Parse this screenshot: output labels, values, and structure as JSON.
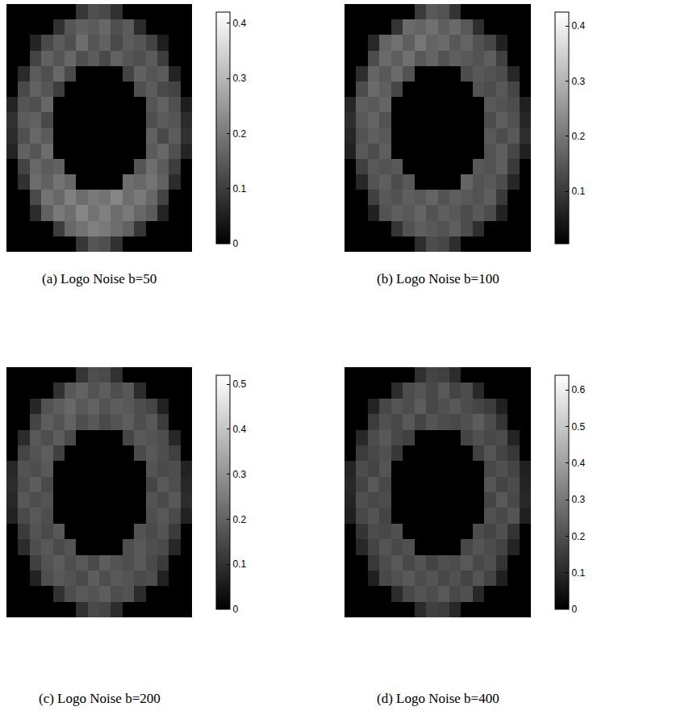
{
  "chart_data": [
    {
      "type": "heatmap",
      "title": "(a) Logo Noise b=50",
      "tick_labels": false,
      "zlim": [
        0,
        0.42
      ],
      "zticks": [
        0,
        0.1,
        0.2,
        0.3,
        0.4
      ],
      "z": [
        [
          0,
          0,
          0,
          0,
          0,
          0,
          0.09,
          0.13,
          0.12,
          0.08,
          0,
          0,
          0,
          0,
          0,
          0
        ],
        [
          0,
          0,
          0,
          0,
          0.08,
          0.14,
          0.16,
          0.15,
          0.17,
          0.13,
          0.15,
          0.07,
          0,
          0,
          0,
          0
        ],
        [
          0,
          0,
          0.06,
          0.12,
          0.15,
          0.13,
          0.18,
          0.14,
          0.16,
          0.12,
          0.15,
          0.14,
          0.11,
          0.05,
          0,
          0
        ],
        [
          0,
          0,
          0.11,
          0.16,
          0.14,
          0.17,
          0.13,
          0.15,
          0.12,
          0.16,
          0.14,
          0.13,
          0.15,
          0.1,
          0,
          0
        ],
        [
          0,
          0.07,
          0.15,
          0.13,
          0.17,
          0.12,
          0,
          0,
          0,
          0,
          0.11,
          0.16,
          0.14,
          0.15,
          0.06,
          0
        ],
        [
          0,
          0.12,
          0.16,
          0.14,
          0.1,
          0,
          0,
          0,
          0,
          0,
          0,
          0.13,
          0.15,
          0.12,
          0.11,
          0
        ],
        [
          0.06,
          0.14,
          0.13,
          0.17,
          0,
          0,
          0,
          0,
          0,
          0,
          0,
          0,
          0.14,
          0.16,
          0.13,
          0.05
        ],
        [
          0.08,
          0.15,
          0.16,
          0.12,
          0,
          0,
          0,
          0,
          0,
          0,
          0,
          0,
          0.13,
          0.15,
          0.14,
          0.07
        ],
        [
          0.07,
          0.13,
          0.17,
          0.15,
          0,
          0,
          0,
          0,
          0,
          0,
          0,
          0,
          0.16,
          0.12,
          0.15,
          0.08
        ],
        [
          0.06,
          0.16,
          0.14,
          0.18,
          0,
          0,
          0,
          0,
          0,
          0,
          0,
          0,
          0.15,
          0.17,
          0.13,
          0.06
        ],
        [
          0,
          0.11,
          0.17,
          0.15,
          0.16,
          0,
          0,
          0,
          0,
          0,
          0,
          0.14,
          0.18,
          0.15,
          0.1,
          0
        ],
        [
          0,
          0.08,
          0.18,
          0.16,
          0.19,
          0.17,
          0,
          0,
          0,
          0,
          0.18,
          0.17,
          0.19,
          0.16,
          0.07,
          0
        ],
        [
          0,
          0,
          0.12,
          0.19,
          0.17,
          0.21,
          0.18,
          0.2,
          0.19,
          0.22,
          0.18,
          0.2,
          0.17,
          0.11,
          0,
          0
        ],
        [
          0,
          0,
          0.07,
          0.16,
          0.2,
          0.18,
          0.22,
          0.19,
          0.21,
          0.18,
          0.2,
          0.17,
          0.15,
          0.06,
          0,
          0
        ],
        [
          0,
          0,
          0,
          0,
          0.1,
          0.17,
          0.19,
          0.21,
          0.2,
          0.18,
          0.16,
          0.09,
          0,
          0,
          0,
          0
        ],
        [
          0,
          0,
          0,
          0,
          0,
          0,
          0.09,
          0.14,
          0.13,
          0.08,
          0,
          0,
          0,
          0,
          0,
          0
        ]
      ]
    },
    {
      "type": "heatmap",
      "title": "(b) Logo Noise b=100",
      "tick_labels": false,
      "zlim": [
        0.005,
        0.425
      ],
      "zticks": [
        0.1,
        0.2,
        0.3,
        0.4
      ],
      "z": [
        [
          0,
          0,
          0,
          0,
          0,
          0,
          0.1,
          0.15,
          0.14,
          0.09,
          0,
          0,
          0,
          0,
          0,
          0
        ],
        [
          0,
          0,
          0,
          0,
          0.09,
          0.18,
          0.17,
          0.19,
          0.16,
          0.18,
          0.15,
          0.08,
          0,
          0,
          0,
          0
        ],
        [
          0,
          0,
          0.07,
          0.17,
          0.19,
          0.16,
          0.2,
          0.17,
          0.18,
          0.15,
          0.17,
          0.14,
          0.12,
          0.06,
          0,
          0
        ],
        [
          0,
          0,
          0.13,
          0.18,
          0.16,
          0.19,
          0.15,
          0.17,
          0.14,
          0.16,
          0.15,
          0.14,
          0.16,
          0.11,
          0,
          0
        ],
        [
          0,
          0.08,
          0.17,
          0.15,
          0.18,
          0.14,
          0,
          0,
          0,
          0,
          0.13,
          0.15,
          0.14,
          0.13,
          0.07,
          0
        ],
        [
          0,
          0.13,
          0.18,
          0.16,
          0.12,
          0,
          0,
          0,
          0,
          0,
          0,
          0.14,
          0.13,
          0.15,
          0.12,
          0
        ],
        [
          0.07,
          0.16,
          0.15,
          0.17,
          0,
          0,
          0,
          0,
          0,
          0,
          0,
          0,
          0.15,
          0.14,
          0.13,
          0.06
        ],
        [
          0.08,
          0.15,
          0.17,
          0.14,
          0,
          0,
          0,
          0,
          0,
          0,
          0,
          0,
          0.13,
          0.16,
          0.14,
          0.07
        ],
        [
          0.07,
          0.14,
          0.16,
          0.15,
          0,
          0,
          0,
          0,
          0,
          0,
          0,
          0,
          0.15,
          0.13,
          0.15,
          0.08
        ],
        [
          0.06,
          0.15,
          0.13,
          0.16,
          0,
          0,
          0,
          0,
          0,
          0,
          0,
          0,
          0.14,
          0.16,
          0.12,
          0.06
        ],
        [
          0,
          0.11,
          0.15,
          0.14,
          0.15,
          0,
          0,
          0,
          0,
          0,
          0,
          0.15,
          0.14,
          0.16,
          0.1,
          0
        ],
        [
          0,
          0.07,
          0.14,
          0.16,
          0.13,
          0.15,
          0,
          0,
          0,
          0,
          0.17,
          0.14,
          0.15,
          0.13,
          0.07,
          0
        ],
        [
          0,
          0,
          0.11,
          0.15,
          0.14,
          0.16,
          0.15,
          0.17,
          0.14,
          0.16,
          0.15,
          0.14,
          0.16,
          0.1,
          0,
          0
        ],
        [
          0,
          0,
          0.06,
          0.14,
          0.16,
          0.15,
          0.17,
          0.14,
          0.16,
          0.15,
          0.13,
          0.15,
          0.13,
          0.06,
          0,
          0
        ],
        [
          0,
          0,
          0,
          0,
          0.09,
          0.14,
          0.16,
          0.15,
          0.14,
          0.16,
          0.13,
          0.08,
          0,
          0,
          0,
          0
        ],
        [
          0,
          0,
          0,
          0,
          0,
          0,
          0.08,
          0.13,
          0.12,
          0.08,
          0,
          0,
          0,
          0,
          0,
          0
        ]
      ]
    },
    {
      "type": "heatmap",
      "title": "(c) Logo Noise b=200",
      "tick_labels": false,
      "zlim": [
        0,
        0.52
      ],
      "zticks": [
        0,
        0.1,
        0.2,
        0.3,
        0.4,
        0.5
      ],
      "z": [
        [
          0,
          0,
          0,
          0,
          0,
          0,
          0.11,
          0.16,
          0.15,
          0.1,
          0,
          0,
          0,
          0,
          0,
          0
        ],
        [
          0,
          0,
          0,
          0,
          0.1,
          0.18,
          0.2,
          0.17,
          0.19,
          0.16,
          0.18,
          0.09,
          0,
          0,
          0,
          0
        ],
        [
          0,
          0,
          0.08,
          0.17,
          0.19,
          0.21,
          0.18,
          0.2,
          0.17,
          0.19,
          0.18,
          0.16,
          0.14,
          0.07,
          0,
          0
        ],
        [
          0,
          0,
          0.14,
          0.19,
          0.17,
          0.2,
          0.16,
          0.18,
          0.15,
          0.17,
          0.19,
          0.16,
          0.18,
          0.12,
          0,
          0
        ],
        [
          0,
          0.09,
          0.18,
          0.16,
          0.19,
          0.15,
          0,
          0,
          0,
          0,
          0.14,
          0.18,
          0.17,
          0.16,
          0.08,
          0
        ],
        [
          0,
          0.14,
          0.17,
          0.19,
          0.13,
          0,
          0,
          0,
          0,
          0,
          0,
          0.15,
          0.18,
          0.16,
          0.13,
          0
        ],
        [
          0.08,
          0.17,
          0.16,
          0.18,
          0,
          0,
          0,
          0,
          0,
          0,
          0,
          0,
          0.17,
          0.15,
          0.16,
          0.07
        ],
        [
          0.09,
          0.16,
          0.19,
          0.15,
          0,
          0,
          0,
          0,
          0,
          0,
          0,
          0,
          0.14,
          0.18,
          0.16,
          0.08
        ],
        [
          0.08,
          0.18,
          0.16,
          0.17,
          0,
          0,
          0,
          0,
          0,
          0,
          0,
          0,
          0.17,
          0.15,
          0.18,
          0.09
        ],
        [
          0.07,
          0.15,
          0.18,
          0.16,
          0,
          0,
          0,
          0,
          0,
          0,
          0,
          0,
          0.16,
          0.18,
          0.15,
          0.07
        ],
        [
          0,
          0.12,
          0.17,
          0.15,
          0.18,
          0,
          0,
          0,
          0,
          0,
          0,
          0.17,
          0.15,
          0.17,
          0.12,
          0
        ],
        [
          0,
          0.09,
          0.16,
          0.18,
          0.15,
          0.17,
          0,
          0,
          0,
          0,
          0.16,
          0.18,
          0.16,
          0.15,
          0.08,
          0
        ],
        [
          0,
          0,
          0.13,
          0.17,
          0.19,
          0.16,
          0.18,
          0.15,
          0.19,
          0.17,
          0.16,
          0.18,
          0.15,
          0.12,
          0,
          0
        ],
        [
          0,
          0,
          0.07,
          0.16,
          0.18,
          0.17,
          0.15,
          0.19,
          0.16,
          0.18,
          0.17,
          0.15,
          0.16,
          0.07,
          0,
          0
        ],
        [
          0,
          0,
          0,
          0,
          0.1,
          0.16,
          0.18,
          0.17,
          0.19,
          0.16,
          0.17,
          0.09,
          0,
          0,
          0,
          0
        ],
        [
          0,
          0,
          0,
          0,
          0,
          0,
          0.1,
          0.15,
          0.14,
          0.09,
          0,
          0,
          0,
          0,
          0,
          0
        ]
      ]
    },
    {
      "type": "heatmap",
      "title": "(d) Logo Noise b=400",
      "tick_labels": false,
      "zlim": [
        0,
        0.64
      ],
      "zticks": [
        0,
        0.1,
        0.2,
        0.3,
        0.4,
        0.5,
        0.6
      ],
      "z": [
        [
          0,
          0,
          0,
          0,
          0,
          0,
          0.12,
          0.17,
          0.16,
          0.11,
          0,
          0,
          0,
          0,
          0,
          0
        ],
        [
          0,
          0,
          0,
          0,
          0.11,
          0.19,
          0.21,
          0.18,
          0.22,
          0.17,
          0.19,
          0.1,
          0,
          0,
          0,
          0
        ],
        [
          0,
          0,
          0.09,
          0.18,
          0.21,
          0.19,
          0.23,
          0.18,
          0.2,
          0.22,
          0.19,
          0.17,
          0.15,
          0.08,
          0,
          0
        ],
        [
          0,
          0,
          0.15,
          0.2,
          0.18,
          0.22,
          0.17,
          0.21,
          0.19,
          0.18,
          0.2,
          0.23,
          0.19,
          0.13,
          0,
          0
        ],
        [
          0,
          0.1,
          0.19,
          0.22,
          0.18,
          0.16,
          0,
          0,
          0,
          0,
          0.17,
          0.2,
          0.18,
          0.19,
          0.09,
          0
        ],
        [
          0,
          0.15,
          0.18,
          0.2,
          0.14,
          0,
          0,
          0,
          0,
          0,
          0,
          0.16,
          0.21,
          0.17,
          0.14,
          0
        ],
        [
          0.09,
          0.19,
          0.17,
          0.21,
          0,
          0,
          0,
          0,
          0,
          0,
          0,
          0,
          0.18,
          0.2,
          0.17,
          0.08
        ],
        [
          0.1,
          0.17,
          0.22,
          0.18,
          0,
          0,
          0,
          0,
          0,
          0,
          0,
          0,
          0.21,
          0.17,
          0.19,
          0.09
        ],
        [
          0.09,
          0.2,
          0.18,
          0.19,
          0,
          0,
          0,
          0,
          0,
          0,
          0,
          0,
          0.17,
          0.22,
          0.18,
          0.1
        ],
        [
          0.08,
          0.18,
          0.21,
          0.17,
          0,
          0,
          0,
          0,
          0,
          0,
          0,
          0,
          0.2,
          0.18,
          0.21,
          0.08
        ],
        [
          0,
          0.13,
          0.19,
          0.18,
          0.2,
          0,
          0,
          0,
          0,
          0,
          0,
          0.19,
          0.17,
          0.2,
          0.13,
          0
        ],
        [
          0,
          0.1,
          0.17,
          0.21,
          0.18,
          0.2,
          0,
          0,
          0,
          0,
          0.18,
          0.21,
          0.19,
          0.17,
          0.09,
          0
        ],
        [
          0,
          0,
          0.14,
          0.19,
          0.22,
          0.18,
          0.21,
          0.17,
          0.2,
          0.19,
          0.22,
          0.18,
          0.2,
          0.13,
          0,
          0
        ],
        [
          0,
          0,
          0.08,
          0.18,
          0.2,
          0.22,
          0.19,
          0.21,
          0.18,
          0.2,
          0.17,
          0.21,
          0.17,
          0.08,
          0,
          0
        ],
        [
          0,
          0,
          0,
          0,
          0.11,
          0.18,
          0.21,
          0.19,
          0.22,
          0.18,
          0.2,
          0.1,
          0,
          0,
          0,
          0
        ],
        [
          0,
          0,
          0,
          0,
          0,
          0,
          0.11,
          0.16,
          0.15,
          0.1,
          0,
          0,
          0,
          0,
          0,
          0
        ]
      ]
    }
  ]
}
